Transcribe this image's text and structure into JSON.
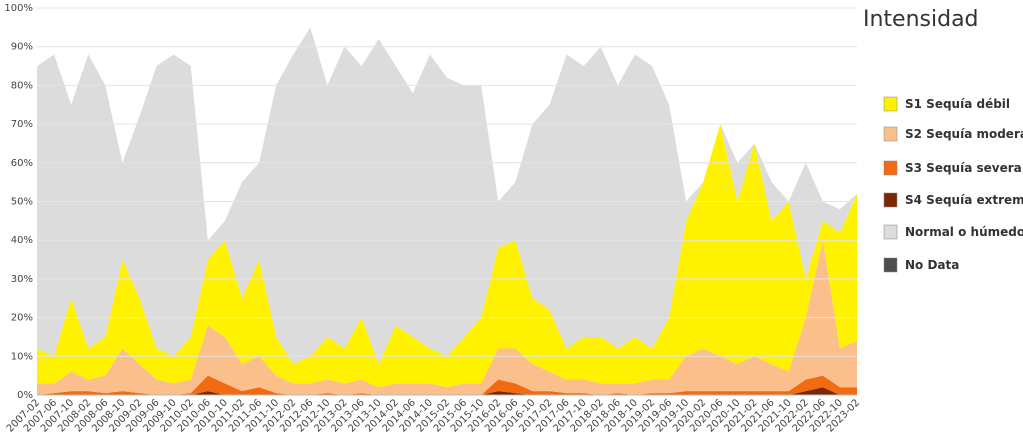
{
  "chart_data": {
    "type": "stacked-area",
    "legend_title": "Intensidad",
    "categories": [
      "2007-02",
      "2007-06",
      "2007-10",
      "2008-02",
      "2008-06",
      "2008-10",
      "2009-02",
      "2009-06",
      "2009-10",
      "2010-02",
      "2010-06",
      "2010-10",
      "2011-02",
      "2011-06",
      "2011-10",
      "2012-02",
      "2012-06",
      "2012-10",
      "2013-02",
      "2013-06",
      "2013-10",
      "2014-02",
      "2014-06",
      "2014-10",
      "2015-02",
      "2015-06",
      "2015-10",
      "2016-02",
      "2016-06",
      "2016-10",
      "2017-02",
      "2017-06",
      "2017-10",
      "2018-02",
      "2018-06",
      "2018-10",
      "2019-02",
      "2019-06",
      "2019-10",
      "2020-02",
      "2020-06",
      "2020-10",
      "2021-02",
      "2021-06",
      "2021-10",
      "2022-02",
      "2022-06",
      "2022-10",
      "2023-02"
    ],
    "series": [
      {
        "name": "S1 Sequía débil",
        "color": "#fff200",
        "values": [
          9,
          7,
          19,
          8,
          10,
          23,
          17,
          8,
          7,
          11,
          17,
          25,
          17,
          25,
          10,
          5,
          7,
          11,
          9,
          16,
          6,
          15,
          12,
          9,
          8,
          12,
          17,
          26,
          28,
          17,
          16,
          8,
          11,
          12,
          9,
          12,
          8,
          16,
          35,
          43,
          60,
          42,
          55,
          37,
          44,
          10,
          5,
          30,
          38
        ]
      },
      {
        "name": "S2 Sequía moderada",
        "color": "#fbbf8c",
        "values": [
          3,
          2.5,
          5,
          3,
          4.5,
          11,
          7.5,
          4,
          3,
          3.5,
          13,
          12,
          7,
          8,
          4.5,
          3,
          3,
          3.5,
          3,
          3.5,
          2,
          3,
          3,
          3,
          2,
          3,
          3,
          8,
          9,
          7,
          5,
          3.5,
          3.5,
          3,
          2.5,
          3,
          3.5,
          3.5,
          9,
          11,
          9,
          7,
          9,
          7,
          5,
          16,
          35,
          10,
          12
        ]
      },
      {
        "name": "S3 Sequía severa",
        "color": "#f26b12",
        "values": [
          0,
          0.5,
          1,
          1,
          0.5,
          1,
          0.5,
          0,
          0,
          0.5,
          4,
          3,
          1,
          2,
          0.5,
          0,
          0,
          0.5,
          0,
          0.5,
          0,
          0,
          0,
          0,
          0,
          0,
          0,
          3,
          2.5,
          1,
          1,
          0.5,
          0.5,
          0,
          0.5,
          0,
          0.5,
          0.5,
          1,
          1,
          1,
          1,
          1,
          1,
          1,
          3,
          3,
          2,
          2
        ]
      },
      {
        "name": "S4 Sequía extrema",
        "color": "#7b2800",
        "values": [
          0,
          0,
          0,
          0,
          0,
          0,
          0,
          0,
          0,
          0,
          1,
          0,
          0,
          0,
          0,
          0,
          0,
          0,
          0,
          0,
          0,
          0,
          0,
          0,
          0,
          0,
          0,
          1,
          0.5,
          0,
          0,
          0,
          0,
          0,
          0,
          0,
          0,
          0,
          0,
          0,
          0,
          0,
          0,
          0,
          0,
          1,
          2,
          0,
          0
        ]
      },
      {
        "name": "Normal o húmedo",
        "color": "#dcdcdc",
        "values": [
          73,
          78,
          50,
          76,
          65,
          25,
          47,
          73,
          78,
          70,
          5,
          5,
          30,
          25,
          65,
          80,
          85,
          65,
          78,
          65,
          84,
          67,
          63,
          76,
          72,
          65,
          60,
          12,
          15,
          45,
          53,
          76,
          70,
          75,
          68,
          73,
          73,
          55,
          5,
          0,
          0,
          10,
          0,
          10,
          0,
          30,
          5,
          6,
          0
        ]
      },
      {
        "name": "No Data",
        "color": "#4d4d4d",
        "values": [
          0,
          0,
          0,
          0,
          0,
          0,
          0,
          0,
          0,
          0,
          0,
          0,
          0,
          0,
          0,
          0,
          0,
          0,
          0,
          0,
          0,
          0,
          0,
          0,
          0,
          0,
          0,
          0,
          0,
          0,
          0,
          0,
          0,
          0,
          0,
          0,
          0,
          0,
          0,
          0,
          0,
          0,
          0,
          0,
          0,
          0,
          0,
          0,
          0
        ]
      }
    ],
    "ylim": [
      0,
      100
    ],
    "yticks": [
      {
        "value": 0,
        "label": "0%"
      },
      {
        "value": 10,
        "label": "10%"
      },
      {
        "value": 20,
        "label": "20%"
      },
      {
        "value": 30,
        "label": "30%"
      },
      {
        "value": 40,
        "label": "40%"
      },
      {
        "value": 50,
        "label": "50%"
      },
      {
        "value": 60,
        "label": "60%"
      },
      {
        "value": 70,
        "label": "70%"
      },
      {
        "value": 80,
        "label": "80%"
      },
      {
        "value": 90,
        "label": "90%"
      },
      {
        "value": 100,
        "label": "100%"
      }
    ],
    "grid": true,
    "legend": "right"
  }
}
